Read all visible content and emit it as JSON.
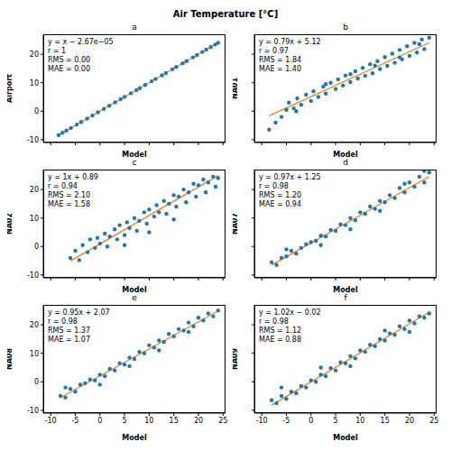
{
  "title": "Air Temperature [°C]",
  "chart_data": [
    {
      "type": "scatter",
      "title": "a",
      "x_label": "Model",
      "y_label": "Airport",
      "annotations": [
        "y = x − 2.67e−05",
        "r = 1",
        "RMS = 0.00",
        "MAE = 0.00"
      ],
      "xlim": [
        -11.5,
        25.5
      ],
      "xticks": [
        -10,
        -5,
        0,
        5,
        10,
        15,
        20,
        25
      ],
      "ylim": [
        -11,
        27
      ],
      "yticks": [
        -10,
        0,
        10,
        20
      ],
      "grid": false,
      "tick_labels": "y",
      "series": [
        {
          "type": "scatter",
          "color": "#1f77b4",
          "marker": "circle",
          "x": [
            -8.4,
            -7.6,
            -6.8,
            -5.9,
            -4.7,
            -3.8,
            -2.6,
            -1.5,
            -0.4,
            0.8,
            1.9,
            3.1,
            4.2,
            5.0,
            6.3,
            7.4,
            8.1,
            9.2,
            10.5,
            11.3,
            12.6,
            13.4,
            14.7,
            15.5,
            16.8,
            17.6,
            18.9,
            19.7,
            20.8,
            21.6,
            22.5,
            23.4,
            24.0
          ],
          "values": [
            -8.4,
            -7.6,
            -6.8,
            -5.9,
            -4.7,
            -3.8,
            -2.6,
            -1.5,
            -0.4,
            0.8,
            1.9,
            3.1,
            4.2,
            5.0,
            6.3,
            7.4,
            8.1,
            9.2,
            10.5,
            11.3,
            12.6,
            13.4,
            14.7,
            15.5,
            16.8,
            17.6,
            18.9,
            19.7,
            20.8,
            21.6,
            22.5,
            23.4,
            24.0
          ]
        },
        {
          "type": "line",
          "color": "#ff7f0e",
          "line_style": "solid",
          "slope": 1,
          "intercept": -2.67e-05
        }
      ]
    },
    {
      "type": "scatter",
      "title": "b",
      "x_label": "Model",
      "y_label": "NA01",
      "annotations": [
        "y = 0.79x + 5.12",
        "r = 0.97",
        "RMS = 1.84",
        "MAE = 1.40"
      ],
      "xlim": [
        -11.5,
        25.5
      ],
      "xticks": [
        -10,
        -5,
        0,
        5,
        10,
        15,
        20,
        25
      ],
      "ylim": [
        -11,
        27
      ],
      "yticks": [
        -10,
        0,
        10,
        20
      ],
      "grid": false,
      "tick_labels": false,
      "series": [
        {
          "type": "scatter",
          "color": "#1f77b4",
          "marker": "circle",
          "x": [
            -8.5,
            -7.2,
            -6,
            -5,
            -4.5,
            -3.5,
            -2.8,
            -2,
            -1,
            0,
            0.5,
            1.5,
            2.5,
            3,
            4,
            5,
            5.5,
            6.5,
            7,
            8,
            9,
            9.5,
            10.5,
            11,
            12,
            12.5,
            13.5,
            14,
            15,
            15.5,
            16.5,
            17,
            18,
            18.5,
            19.5,
            20,
            21,
            21.5,
            22.5,
            23,
            24,
            -3,
            3,
            8,
            13,
            18,
            22
          ],
          "values": [
            -6.5,
            -4.0,
            -2.0,
            0.5,
            3.0,
            1.0,
            4.5,
            2.2,
            5.8,
            3.6,
            7.0,
            5.0,
            8.6,
            6.2,
            10.0,
            7.8,
            11.2,
            9.0,
            12.5,
            10.2,
            14.0,
            11.5,
            15.2,
            12.4,
            16.5,
            13.3,
            17.6,
            14.8,
            19.0,
            15.9,
            20.2,
            17.0,
            21.5,
            18.2,
            22.8,
            19.4,
            24.0,
            20.6,
            25.2,
            21.8,
            25.8,
            0.0,
            9.5,
            13.0,
            16.0,
            18.9,
            23.5
          ]
        },
        {
          "type": "line",
          "color": "#ff7f0e",
          "line_style": "solid",
          "slope": 0.79,
          "intercept": 5.12
        }
      ]
    },
    {
      "type": "scatter",
      "title": "c",
      "x_label": "Model",
      "y_label": "NA02",
      "annotations": [
        "y = 1x + 0.89",
        "r = 0.94",
        "RMS = 2.10",
        "MAE = 1.58"
      ],
      "xlim": [
        -11.5,
        25.5
      ],
      "xticks": [
        -10,
        -5,
        0,
        5,
        10,
        15,
        20,
        25
      ],
      "ylim": [
        -11,
        27
      ],
      "yticks": [
        -10,
        0,
        10,
        20
      ],
      "grid": false,
      "tick_labels": "y",
      "series": [
        {
          "type": "scatter",
          "color": "#1f77b4",
          "marker": "circle",
          "x": [
            -6,
            -5,
            -4.2,
            -3.5,
            -2.5,
            -2,
            -1,
            -0.5,
            0,
            1,
            1.5,
            2,
            3,
            3.5,
            4,
            5,
            5.5,
            6,
            7,
            7.5,
            8,
            9,
            9.5,
            10,
            11,
            11.5,
            12,
            13,
            13.5,
            14,
            15,
            15.5,
            16,
            17,
            17.5,
            18,
            19,
            19.5,
            20,
            21,
            21.5,
            22,
            23,
            23.5,
            24,
            10,
            15,
            5
          ],
          "values": [
            -4.0,
            -1.5,
            -4.8,
            0.5,
            -2.0,
            2.5,
            -0.5,
            3.0,
            1.0,
            4.5,
            0.0,
            3.5,
            6.0,
            2.5,
            7.5,
            4.0,
            8.5,
            6.5,
            10.0,
            5.5,
            9.0,
            12.0,
            8.0,
            13.0,
            10.5,
            14.5,
            12.0,
            16.0,
            11.5,
            15.0,
            18.0,
            14.0,
            17.5,
            20.0,
            15.5,
            19.0,
            22.0,
            17.5,
            21.5,
            23.5,
            19.0,
            22.5,
            24.5,
            21.0,
            24.0,
            5.0,
            9.5,
            0.5
          ]
        },
        {
          "type": "line",
          "color": "#ff7f0e",
          "line_style": "solid",
          "slope": 1,
          "intercept": 0.89
        }
      ]
    },
    {
      "type": "scatter",
      "title": "d",
      "x_label": "Model",
      "y_label": "NA07",
      "annotations": [
        "y = 0.97x + 1.25",
        "r = 0.98",
        "RMS = 1.20",
        "MAE = 0.94"
      ],
      "xlim": [
        -11.5,
        25.5
      ],
      "xticks": [
        -10,
        -5,
        0,
        5,
        10,
        15,
        20,
        25
      ],
      "ylim": [
        -11,
        27
      ],
      "yticks": [
        -10,
        0,
        10,
        20
      ],
      "grid": false,
      "tick_labels": false,
      "series": [
        {
          "type": "scatter",
          "color": "#1f77b4",
          "marker": "circle",
          "x": [
            -8,
            -7,
            -6,
            -5,
            -4,
            -3,
            -2,
            -1,
            0,
            1,
            2,
            3,
            4,
            5,
            6,
            7,
            8,
            9,
            10,
            11,
            12,
            13,
            14,
            15,
            16,
            17,
            18,
            19,
            20,
            21,
            22,
            23,
            24,
            -5,
            2,
            8,
            14,
            19,
            23
          ],
          "values": [
            -5.5,
            -6.5,
            -4.0,
            -3.5,
            -1.5,
            -2.5,
            -0.5,
            0.8,
            1.5,
            2.0,
            3.8,
            3.5,
            5.8,
            5.5,
            7.8,
            7.5,
            10.0,
            9.2,
            12.0,
            11.5,
            14.0,
            13.2,
            16.0,
            15.5,
            18.0,
            17.0,
            20.5,
            19.0,
            22.5,
            21.0,
            24.5,
            22.5,
            26.0,
            -1.0,
            0.5,
            6.0,
            12.5,
            22.0,
            26.5
          ]
        },
        {
          "type": "line",
          "color": "#ff7f0e",
          "line_style": "solid",
          "slope": 0.97,
          "intercept": 1.25
        }
      ]
    },
    {
      "type": "scatter",
      "title": "e",
      "x_label": "Model",
      "y_label": "NA08",
      "annotations": [
        "y = 0.95x + 2.07",
        "r = 0.98",
        "RMS = 1.37",
        "MAE = 1.07"
      ],
      "xlim": [
        -11.5,
        25.5
      ],
      "xticks": [
        -10,
        -5,
        0,
        5,
        10,
        15,
        20,
        25
      ],
      "ylim": [
        -11,
        27
      ],
      "yticks": [
        -10,
        0,
        10,
        20
      ],
      "grid": false,
      "tick_labels": true,
      "series": [
        {
          "type": "scatter",
          "color": "#1f77b4",
          "marker": "circle",
          "x": [
            -8,
            -7,
            -6,
            -5,
            -4,
            -3,
            -2,
            -1,
            0,
            1,
            2,
            3,
            4,
            5,
            6,
            7,
            8,
            9,
            10,
            11,
            12,
            13,
            14,
            15,
            16,
            17,
            18,
            19,
            20,
            21,
            22,
            23,
            24,
            -7,
            0,
            6,
            12,
            18
          ],
          "values": [
            -5.0,
            -5.5,
            -2.5,
            -3.5,
            -1.0,
            -0.5,
            0.8,
            0.5,
            2.5,
            2.0,
            4.5,
            4.0,
            6.5,
            6.0,
            8.5,
            8.0,
            10.5,
            10.0,
            12.8,
            12.0,
            14.5,
            14.0,
            16.8,
            16.0,
            18.5,
            18.0,
            20.8,
            19.5,
            22.5,
            21.5,
            24.0,
            23.0,
            25.0,
            -2.0,
            -1.0,
            5.5,
            11.0,
            17.5
          ]
        },
        {
          "type": "line",
          "color": "#ff7f0e",
          "line_style": "solid",
          "slope": 0.95,
          "intercept": 2.07
        }
      ]
    },
    {
      "type": "scatter",
      "title": "f",
      "x_label": "Model",
      "y_label": "NA09",
      "annotations": [
        "y = 1.02x − 0.02",
        "r = 0.98",
        "RMS = 1.12",
        "MAE = 0.88"
      ],
      "xlim": [
        -11.5,
        25.5
      ],
      "xticks": [
        -10,
        -5,
        0,
        5,
        10,
        15,
        20,
        25
      ],
      "ylim": [
        -11,
        27
      ],
      "yticks": [
        -10,
        0,
        10,
        20
      ],
      "grid": false,
      "tick_labels": "x",
      "series": [
        {
          "type": "scatter",
          "color": "#1f77b4",
          "marker": "circle",
          "x": [
            -8,
            -7,
            -6,
            -5,
            -4,
            -3,
            -2,
            -1,
            0,
            1,
            2,
            3,
            4,
            5,
            6,
            7,
            8,
            9,
            10,
            11,
            12,
            13,
            14,
            15,
            16,
            17,
            18,
            19,
            20,
            21,
            22,
            23,
            24,
            -6,
            2,
            8,
            15,
            20
          ],
          "values": [
            -6.5,
            -7.5,
            -5.0,
            -6.0,
            -3.5,
            -4.0,
            -1.5,
            -2.0,
            0.5,
            0.0,
            2.5,
            2.0,
            4.8,
            4.0,
            6.8,
            6.5,
            9.0,
            8.2,
            11.0,
            10.5,
            13.0,
            12.5,
            15.0,
            14.5,
            17.0,
            16.5,
            19.5,
            18.5,
            21.5,
            20.5,
            23.0,
            22.5,
            24.0,
            -2.0,
            5.0,
            5.5,
            18.0,
            17.5
          ]
        },
        {
          "type": "line",
          "color": "#ff7f0e",
          "line_style": "solid",
          "slope": 1.02,
          "intercept": -0.02
        }
      ]
    }
  ]
}
